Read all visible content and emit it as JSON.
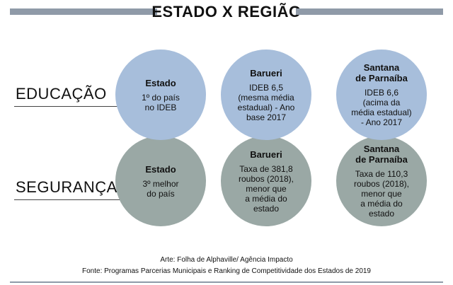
{
  "title": "ESTADO X REGIÃO",
  "rows": [
    {
      "label": "EDUCAÇÃO",
      "cells": [
        {
          "heading": "Estado",
          "text": "1º do país\nno IDEB"
        },
        {
          "heading": "Barueri",
          "text": "IDEB 6,5\n(mesma média\nestadual) - Ano\nbase 2017"
        },
        {
          "heading": "Santana\nde Parnaíba",
          "text": "IDEB 6,6\n(acima da\nmédia estadual)\n- Ano 2017"
        }
      ]
    },
    {
      "label": "SEGURANÇA",
      "cells": [
        {
          "heading": "Estado",
          "text": "3º melhor\ndo país"
        },
        {
          "heading": "Barueri",
          "text": "Taxa de 381,8\nroubos (2018),\nmenor que\na média do\nestado"
        },
        {
          "heading": "Santana\nde Parnaíba",
          "text": "Taxa de 110,3\nroubos (2018),\nmenor que\na média do\nestado"
        }
      ]
    }
  ],
  "credits": {
    "art": "Arte: Folha de Alphaville/ Agência Impacto",
    "source": "Fonte: Programas Parcerias Municipais e Ranking de Competitividade dos Estados de 2019"
  },
  "colors": {
    "education_circle": "#a7bedb",
    "security_circle": "#9aa8a5",
    "rule_bar": "#8f9aa8"
  }
}
